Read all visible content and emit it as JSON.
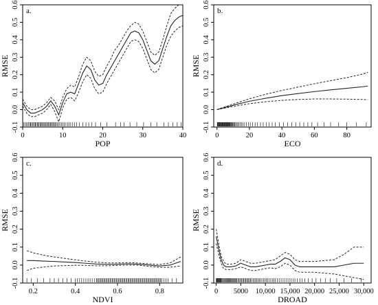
{
  "chart_data": [
    {
      "type": "line",
      "panel_label": "a.",
      "xlabel": "POP",
      "ylabel": "RMSE",
      "xlim": [
        0,
        40
      ],
      "ylim": [
        -0.1,
        0.6
      ],
      "x_ticks": [
        0,
        10,
        20,
        30,
        40
      ],
      "x_tick_labels": [
        "0",
        "10",
        "20",
        "30",
        "40"
      ],
      "y_ticks": [
        -0.1,
        0.0,
        0.1,
        0.2,
        0.3,
        0.4,
        0.5,
        0.6
      ],
      "y_tick_labels": [
        "-0.1",
        "0.0",
        "0.1",
        "0.2",
        "0.3",
        "0.4",
        "0.5",
        "0.6"
      ],
      "series": [
        {
          "role": "fit",
          "x": [
            0,
            1,
            2,
            3,
            4,
            5,
            6,
            7,
            8,
            9,
            10,
            11,
            12,
            13,
            14,
            15,
            16,
            17,
            18,
            19,
            20,
            21,
            22,
            23,
            24,
            25,
            26,
            27,
            28,
            29,
            30,
            31,
            32,
            33,
            34,
            35,
            36,
            37,
            38,
            39,
            40
          ],
          "values": [
            0.04,
            0.0,
            -0.02,
            -0.02,
            -0.01,
            0.0,
            0.02,
            0.05,
            0.02,
            -0.03,
            0.04,
            0.09,
            0.1,
            0.09,
            0.15,
            0.21,
            0.25,
            0.23,
            0.17,
            0.14,
            0.15,
            0.2,
            0.24,
            0.28,
            0.32,
            0.36,
            0.4,
            0.44,
            0.45,
            0.44,
            0.4,
            0.34,
            0.28,
            0.26,
            0.28,
            0.35,
            0.42,
            0.48,
            0.51,
            0.53,
            0.54
          ]
        },
        {
          "role": "upper",
          "x": [
            0,
            1,
            2,
            3,
            4,
            5,
            6,
            7,
            8,
            9,
            10,
            11,
            12,
            13,
            14,
            15,
            16,
            17,
            18,
            19,
            20,
            21,
            22,
            23,
            24,
            25,
            26,
            27,
            28,
            29,
            30,
            31,
            32,
            33,
            34,
            35,
            36,
            37,
            38,
            39,
            40
          ],
          "values": [
            0.06,
            0.02,
            0.0,
            0.0,
            0.01,
            0.02,
            0.04,
            0.07,
            0.05,
            0.0,
            0.07,
            0.12,
            0.14,
            0.13,
            0.19,
            0.26,
            0.3,
            0.28,
            0.22,
            0.19,
            0.2,
            0.25,
            0.29,
            0.34,
            0.37,
            0.41,
            0.45,
            0.48,
            0.5,
            0.49,
            0.45,
            0.39,
            0.33,
            0.31,
            0.33,
            0.4,
            0.48,
            0.55,
            0.58,
            0.6,
            0.61
          ]
        },
        {
          "role": "lower",
          "x": [
            0,
            1,
            2,
            3,
            4,
            5,
            6,
            7,
            8,
            9,
            10,
            11,
            12,
            13,
            14,
            15,
            16,
            17,
            18,
            19,
            20,
            21,
            22,
            23,
            24,
            25,
            26,
            27,
            28,
            29,
            30,
            31,
            32,
            33,
            34,
            35,
            36,
            37,
            38,
            39,
            40
          ],
          "values": [
            0.02,
            -0.02,
            -0.04,
            -0.04,
            -0.03,
            -0.02,
            0.0,
            0.03,
            -0.01,
            -0.07,
            0.01,
            0.06,
            0.07,
            0.05,
            0.1,
            0.16,
            0.2,
            0.18,
            0.12,
            0.09,
            0.1,
            0.15,
            0.19,
            0.23,
            0.27,
            0.31,
            0.35,
            0.39,
            0.4,
            0.39,
            0.35,
            0.29,
            0.23,
            0.21,
            0.23,
            0.3,
            0.37,
            0.42,
            0.45,
            0.47,
            0.48
          ]
        }
      ],
      "rug": [
        0.3,
        0.6,
        0.9,
        1.2,
        1.5,
        1.8,
        2.0,
        2.2,
        2.5,
        2.7,
        3.0,
        3.2,
        3.4,
        3.7,
        3.9,
        4.1,
        4.4,
        4.6,
        4.8,
        5.0,
        5.3,
        5.5,
        5.7,
        6.0,
        6.2,
        6.4,
        6.7,
        6.9,
        7.1,
        7.4,
        7.6,
        7.9,
        8.1,
        8.4,
        8.7,
        9.0,
        9.3,
        9.7,
        10.0,
        10.4,
        10.8,
        11.2,
        11.6,
        12.0,
        12.5,
        13.0,
        13.5,
        14.2,
        15.0,
        15.8,
        16.5,
        17.3,
        18.2,
        19.5,
        21.0,
        23.2,
        24.5,
        25.3,
        26.8,
        28.5,
        30.2,
        32.0,
        33.5,
        35.3,
        36.4,
        37.5,
        38.6,
        39.6
      ]
    },
    {
      "type": "line",
      "panel_label": "b.",
      "xlabel": "ECO",
      "ylabel": "RMSE",
      "xlim": [
        -2,
        95
      ],
      "ylim": [
        -0.1,
        0.6
      ],
      "x_ticks": [
        0,
        20,
        40,
        60,
        80
      ],
      "x_tick_labels": [
        "0",
        "20",
        "40",
        "60",
        "80"
      ],
      "y_ticks": [
        -0.1,
        0.0,
        0.1,
        0.2,
        0.3,
        0.4,
        0.5,
        0.6
      ],
      "y_tick_labels": [
        "-0.1",
        "0.0",
        "0.1",
        "0.2",
        "0.3",
        "0.4",
        "0.5",
        "0.6"
      ],
      "series": [
        {
          "role": "fit",
          "x": [
            0,
            10,
            20,
            30,
            40,
            50,
            60,
            70,
            80,
            90,
            93
          ],
          "values": [
            0.0,
            0.025,
            0.048,
            0.065,
            0.08,
            0.092,
            0.103,
            0.113,
            0.122,
            0.131,
            0.135
          ]
        },
        {
          "role": "upper",
          "x": [
            0,
            10,
            20,
            30,
            40,
            50,
            60,
            70,
            80,
            90,
            93
          ],
          "values": [
            0.0,
            0.032,
            0.062,
            0.088,
            0.11,
            0.129,
            0.148,
            0.166,
            0.183,
            0.204,
            0.214
          ]
        },
        {
          "role": "lower",
          "x": [
            0,
            10,
            20,
            30,
            40,
            50,
            60,
            70,
            80,
            90,
            93
          ],
          "values": [
            0.0,
            0.018,
            0.034,
            0.045,
            0.053,
            0.058,
            0.061,
            0.061,
            0.06,
            0.058,
            0.057
          ]
        }
      ],
      "rug": [
        0.2,
        0.5,
        0.8,
        1.1,
        1.4,
        1.7,
        2.0,
        2.3,
        2.6,
        2.9,
        3.2,
        3.5,
        3.8,
        4.1,
        4.4,
        4.7,
        5.0,
        5.3,
        5.6,
        5.9,
        6.2,
        6.5,
        6.8,
        7.1,
        7.4,
        7.7,
        8.0,
        8.3,
        8.7,
        9.1,
        9.5,
        9.9,
        10.4,
        10.9,
        11.5,
        12.1,
        12.8,
        13.5,
        14.3,
        15.2,
        16.0,
        17.0,
        18.1,
        19.3,
        20.5,
        22.0,
        23.5,
        25.0,
        26.8,
        28.5,
        30.3,
        32.0,
        34.0,
        36.0,
        38.5,
        41.0,
        43.5,
        46.0,
        48.5,
        51.0,
        53.5,
        56.0,
        58.5,
        62.0,
        66.0,
        70.0,
        75.0,
        80.0,
        86.0,
        92.0
      ]
    },
    {
      "type": "line",
      "panel_label": "c.",
      "xlabel": "NDVI",
      "ylabel": "RMSE",
      "xlim": [
        0.15,
        0.91
      ],
      "ylim": [
        -0.1,
        0.6
      ],
      "x_ticks": [
        0.2,
        0.4,
        0.6,
        0.8
      ],
      "x_tick_labels": [
        "0.2",
        "0.4",
        "0.6",
        "0.8"
      ],
      "y_ticks": [
        -0.1,
        0.0,
        0.1,
        0.2,
        0.3,
        0.4,
        0.5,
        0.6
      ],
      "y_tick_labels": [
        "-0.1",
        "0.0",
        "0.1",
        "0.2",
        "0.3",
        "0.4",
        "0.5",
        "0.6"
      ],
      "series": [
        {
          "role": "fit",
          "x": [
            0.17,
            0.2,
            0.25,
            0.3,
            0.35,
            0.4,
            0.45,
            0.5,
            0.55,
            0.6,
            0.65,
            0.7,
            0.75,
            0.8,
            0.85,
            0.9
          ],
          "values": [
            0.025,
            0.025,
            0.022,
            0.02,
            0.017,
            0.014,
            0.01,
            0.006,
            0.004,
            0.005,
            0.007,
            0.005,
            0.0,
            -0.005,
            0.0,
            0.02
          ]
        },
        {
          "role": "upper",
          "x": [
            0.17,
            0.2,
            0.25,
            0.3,
            0.35,
            0.4,
            0.45,
            0.5,
            0.55,
            0.6,
            0.65,
            0.7,
            0.75,
            0.8,
            0.85,
            0.9
          ],
          "values": [
            0.08,
            0.068,
            0.055,
            0.045,
            0.037,
            0.029,
            0.022,
            0.016,
            0.012,
            0.012,
            0.014,
            0.011,
            0.007,
            0.003,
            0.012,
            0.045
          ]
        },
        {
          "role": "lower",
          "x": [
            0.17,
            0.2,
            0.25,
            0.3,
            0.35,
            0.4,
            0.45,
            0.5,
            0.55,
            0.6,
            0.65,
            0.7,
            0.75,
            0.8,
            0.85,
            0.9
          ],
          "values": [
            -0.03,
            -0.018,
            -0.011,
            -0.005,
            -0.003,
            -0.001,
            -0.002,
            -0.004,
            -0.004,
            -0.002,
            0.0,
            -0.001,
            -0.007,
            -0.013,
            -0.012,
            -0.005
          ]
        }
      ],
      "rug": [
        0.17,
        0.19,
        0.22,
        0.25,
        0.28,
        0.3,
        0.32,
        0.34,
        0.36,
        0.38,
        0.4,
        0.41,
        0.42,
        0.43,
        0.44,
        0.45,
        0.46,
        0.47,
        0.48,
        0.49,
        0.5,
        0.505,
        0.51,
        0.515,
        0.52,
        0.525,
        0.53,
        0.535,
        0.54,
        0.545,
        0.55,
        0.555,
        0.56,
        0.565,
        0.57,
        0.575,
        0.58,
        0.585,
        0.59,
        0.595,
        0.6,
        0.605,
        0.61,
        0.615,
        0.62,
        0.625,
        0.63,
        0.635,
        0.64,
        0.645,
        0.65,
        0.655,
        0.66,
        0.665,
        0.67,
        0.675,
        0.68,
        0.685,
        0.69,
        0.695,
        0.7,
        0.705,
        0.71,
        0.715,
        0.72,
        0.725,
        0.73,
        0.735,
        0.74,
        0.745,
        0.75,
        0.755,
        0.76,
        0.765,
        0.77,
        0.775,
        0.78,
        0.785,
        0.79,
        0.795,
        0.8,
        0.805,
        0.81,
        0.82,
        0.83,
        0.84,
        0.86,
        0.88
      ]
    },
    {
      "type": "line",
      "panel_label": "d.",
      "xlabel": "DROAD",
      "ylabel": "RMSE",
      "xlim": [
        -500,
        31500
      ],
      "ylim": [
        -0.1,
        0.6
      ],
      "x_ticks": [
        0,
        5000,
        10000,
        15000,
        20000,
        25000,
        30000
      ],
      "x_tick_labels": [
        "0",
        "5000",
        "10,000",
        "15,000",
        "20,000",
        "25,000",
        "30,000"
      ],
      "y_ticks": [
        -0.1,
        0.0,
        0.1,
        0.2,
        0.3,
        0.4,
        0.5,
        0.6
      ],
      "y_tick_labels": [
        "-0.1",
        "0.0",
        "0.1",
        "0.2",
        "0.3",
        "0.4",
        "0.5",
        "0.6"
      ],
      "series": [
        {
          "role": "fit",
          "x": [
            0,
            500,
            1000,
            1500,
            2000,
            3000,
            4000,
            5000,
            6000,
            7000,
            8000,
            9000,
            10000,
            11000,
            12000,
            13000,
            14000,
            15000,
            16000,
            17000,
            18000,
            20000,
            22000,
            24000,
            26000,
            28000,
            30000
          ],
          "values": [
            0.16,
            0.09,
            0.03,
            0.0,
            -0.01,
            -0.01,
            -0.005,
            0.01,
            0.0,
            -0.01,
            -0.01,
            -0.005,
            0.0,
            0.005,
            0.005,
            0.02,
            0.04,
            0.03,
            0.0,
            -0.01,
            -0.01,
            -0.01,
            -0.01,
            -0.01,
            0.0,
            0.01,
            0.01
          ]
        },
        {
          "role": "upper",
          "x": [
            0,
            500,
            1000,
            1500,
            2000,
            3000,
            4000,
            5000,
            6000,
            7000,
            8000,
            9000,
            10000,
            11000,
            12000,
            13000,
            14000,
            15000,
            16000,
            17000,
            18000,
            20000,
            22000,
            24000,
            26000,
            28000,
            30000
          ],
          "values": [
            0.2,
            0.12,
            0.05,
            0.02,
            0.005,
            0.005,
            0.01,
            0.03,
            0.02,
            0.01,
            0.01,
            0.015,
            0.02,
            0.025,
            0.03,
            0.05,
            0.07,
            0.06,
            0.03,
            0.02,
            0.02,
            0.02,
            0.025,
            0.03,
            0.06,
            0.1,
            0.1
          ]
        },
        {
          "role": "lower",
          "x": [
            0,
            500,
            1000,
            1500,
            2000,
            3000,
            4000,
            5000,
            6000,
            7000,
            8000,
            9000,
            10000,
            11000,
            12000,
            13000,
            14000,
            15000,
            16000,
            17000,
            18000,
            20000,
            22000,
            24000,
            26000,
            28000,
            30000
          ],
          "values": [
            0.12,
            0.06,
            0.01,
            -0.02,
            -0.025,
            -0.025,
            -0.02,
            -0.01,
            -0.02,
            -0.03,
            -0.03,
            -0.025,
            -0.02,
            -0.015,
            -0.02,
            -0.01,
            0.01,
            0.0,
            -0.03,
            -0.04,
            -0.04,
            -0.04,
            -0.045,
            -0.05,
            -0.06,
            -0.07,
            -0.08
          ]
        }
      ],
      "rug": [
        0,
        100,
        200,
        300,
        400,
        500,
        600,
        700,
        800,
        900,
        1000,
        1150,
        1300,
        1450,
        1600,
        1750,
        1900,
        2050,
        2200,
        2350,
        2500,
        2650,
        2800,
        2950,
        3100,
        3250,
        3400,
        3550,
        3700,
        3850,
        4000,
        4200,
        4400,
        4600,
        4800,
        5000,
        5200,
        5400,
        5600,
        5800,
        6000,
        6200,
        6400,
        6600,
        6800,
        7000,
        7250,
        7500,
        7750,
        8000,
        8250,
        8500,
        8750,
        9000,
        9300,
        9600,
        9900,
        10200,
        10500,
        10800,
        11100,
        11400,
        11700,
        12000,
        12400,
        12800,
        13200,
        13600,
        14000,
        14400,
        14800,
        15200,
        15600,
        16000,
        16500,
        17000,
        17500,
        18000,
        18700,
        19500,
        20300,
        21200,
        22200,
        23200,
        24500,
        26000,
        27500,
        29500
      ]
    }
  ]
}
